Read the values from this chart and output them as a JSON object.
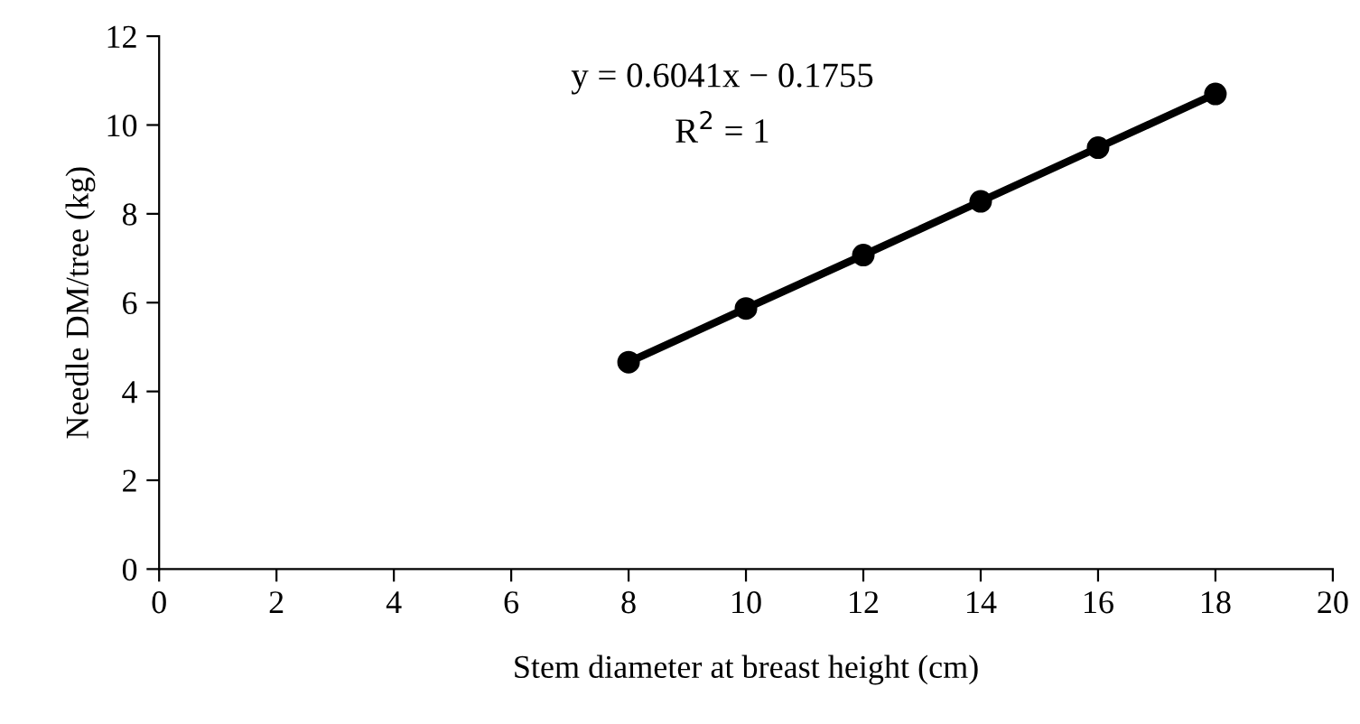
{
  "chart_data": {
    "type": "line",
    "xlabel": "Stem diameter at breast height (cm)",
    "ylabel": "Needle DM/tree (kg)",
    "x": [
      8,
      10,
      12,
      14,
      16,
      18
    ],
    "series": [
      {
        "color": "#000000",
        "values": [
          4.66,
          5.87,
          7.07,
          8.28,
          9.49,
          10.7
        ]
      }
    ],
    "xlim": [
      0,
      20
    ],
    "xticks": [
      0,
      2,
      4,
      6,
      8,
      10,
      12,
      14,
      16,
      18,
      20
    ],
    "ylim": [
      0,
      12
    ],
    "yticks": [
      0,
      2,
      4,
      6,
      8,
      10,
      12
    ],
    "annotations": [
      "y = 0.6041x − 0.1755",
      "R$^{2}$ = 1"
    ],
    "marker": "circle",
    "line_style": "solid",
    "grid": false,
    "legend": false
  }
}
